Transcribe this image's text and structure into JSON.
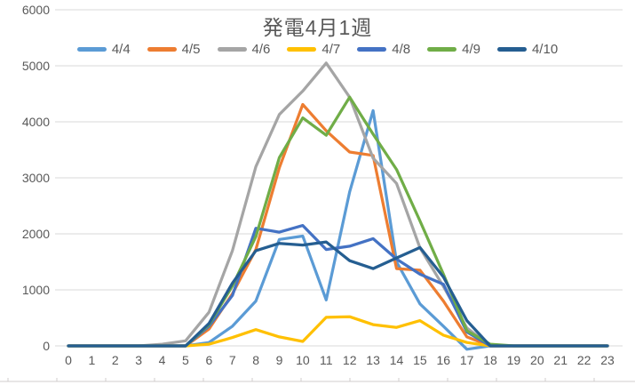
{
  "header": {
    "title": "発電4月1週"
  },
  "chart_data": {
    "type": "line",
    "title": "発電4月1週",
    "xlabel": "",
    "ylabel": "",
    "ylim": [
      0,
      6000
    ],
    "y_step": 1000,
    "grid": "horizontal",
    "legend_position": "top",
    "text_color": "#595959",
    "grid_color": "#D9D9D9",
    "x_labels": [
      "0",
      "1",
      "2",
      "3",
      "4",
      "5",
      "6",
      "7",
      "8",
      "9",
      "10",
      "11",
      "12",
      "13",
      "14",
      "15",
      "16",
      "17",
      "18",
      "19",
      "20",
      "21",
      "22",
      "23"
    ],
    "y_labels": [
      "0",
      "1000",
      "2000",
      "3000",
      "4000",
      "5000",
      "6000"
    ],
    "series": [
      {
        "name": "4/4",
        "color": "#5B9BD5",
        "values": [
          0,
          0,
          0,
          0,
          0,
          0,
          60,
          350,
          800,
          1900,
          1960,
          820,
          2750,
          4200,
          1500,
          750,
          350,
          -60,
          0,
          0,
          0,
          0,
          0,
          0
        ]
      },
      {
        "name": "4/5",
        "color": "#ED7D31",
        "values": [
          0,
          0,
          0,
          0,
          0,
          0,
          300,
          930,
          1720,
          3180,
          4310,
          3840,
          3460,
          3400,
          1380,
          1350,
          800,
          160,
          0,
          0,
          0,
          0,
          0,
          0
        ]
      },
      {
        "name": "4/6",
        "color": "#A5A5A5",
        "values": [
          0,
          0,
          0,
          0,
          30,
          90,
          600,
          1700,
          3200,
          4130,
          4550,
          5050,
          4440,
          3350,
          2900,
          1750,
          1060,
          320,
          0,
          0,
          0,
          0,
          0,
          0
        ]
      },
      {
        "name": "4/7",
        "color": "#FFC000",
        "values": [
          0,
          0,
          0,
          0,
          0,
          0,
          30,
          150,
          290,
          160,
          80,
          510,
          520,
          380,
          330,
          450,
          190,
          60,
          0,
          0,
          0,
          0,
          0,
          0
        ]
      },
      {
        "name": "4/8",
        "color": "#4472C4",
        "values": [
          0,
          0,
          0,
          0,
          0,
          0,
          350,
          900,
          2100,
          2030,
          2150,
          1720,
          1780,
          1915,
          1550,
          1280,
          1100,
          250,
          0,
          0,
          0,
          0,
          0,
          0
        ]
      },
      {
        "name": "4/9",
        "color": "#70AD47",
        "values": [
          0,
          0,
          0,
          0,
          0,
          0,
          380,
          1070,
          1950,
          3360,
          4070,
          3760,
          4440,
          3780,
          3150,
          2230,
          1280,
          270,
          30,
          0,
          0,
          0,
          0,
          0
        ]
      },
      {
        "name": "4/10",
        "color": "#255E91",
        "values": [
          0,
          0,
          0,
          0,
          0,
          0,
          400,
          1120,
          1700,
          1830,
          1800,
          1855,
          1520,
          1380,
          1570,
          1755,
          1230,
          450,
          0,
          0,
          0,
          0,
          0,
          0
        ]
      }
    ]
  }
}
